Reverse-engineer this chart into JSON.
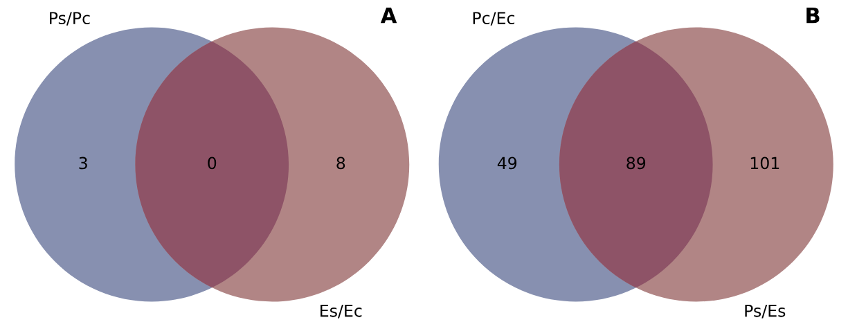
{
  "chart_data": [
    {
      "type": "other",
      "title": "A",
      "categories": [
        null,
        null,
        null
      ],
      "values": [
        3,
        0,
        8
      ],
      "data_labels": true,
      "colors": [
        "#8790b0",
        "#8e5367",
        "#b18585"
      ],
      "annotations": [
        "Ps/Pc",
        "Es/Ec"
      ]
    },
    {
      "type": "other",
      "title": "B",
      "categories": [
        null,
        null,
        null
      ],
      "values": [
        49,
        89,
        101
      ],
      "data_labels": true,
      "colors": [
        "#8790b0",
        "#8e5367",
        "#b18585"
      ],
      "annotations": [
        "Pc/Ec",
        "Ps/Es"
      ]
    }
  ]
}
